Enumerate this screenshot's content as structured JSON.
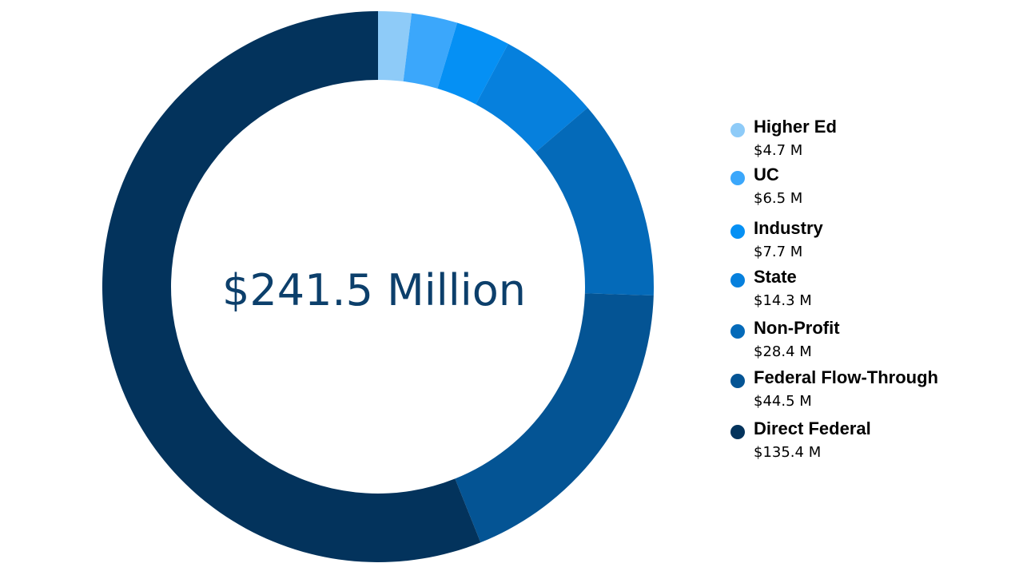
{
  "chart_data": {
    "type": "pie",
    "subtype": "donut",
    "center_label": "$241.5 Million",
    "legend_position": "right",
    "slices": [
      {
        "name": "Higher Ed",
        "value": 4.7,
        "value_label": "$4.7 M",
        "color": "#8ecbf8"
      },
      {
        "name": "UC",
        "value": 6.5,
        "value_label": "$6.5 M",
        "color": "#3ba7fb"
      },
      {
        "name": "Industry",
        "value": 7.7,
        "value_label": "$7.7 M",
        "color": "#0590f4"
      },
      {
        "name": "State",
        "value": 14.3,
        "value_label": "$14.3 M",
        "color": "#0680dd"
      },
      {
        "name": "Non-Profit",
        "value": 28.4,
        "value_label": "$28.4 M",
        "color": "#046ab9"
      },
      {
        "name": "Federal Flow-Through",
        "value": 44.5,
        "value_label": "$44.5 M",
        "color": "#045494"
      },
      {
        "name": "Direct Federal",
        "value": 135.4,
        "value_label": "$135.4 M",
        "color": "#03335c"
      }
    ]
  }
}
